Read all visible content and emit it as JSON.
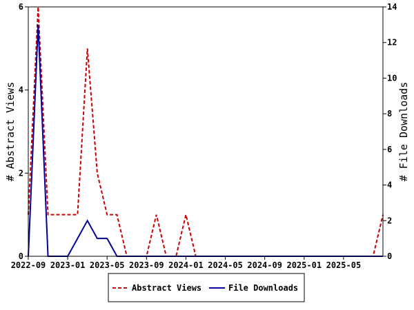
{
  "chart_data": {
    "type": "line",
    "ylabel_left": "# Abstract Views",
    "ylabel_right": "# File Downloads",
    "x_tick_labels": [
      "2022-09",
      "2023-01",
      "2023-05",
      "2023-09",
      "2024-01",
      "2024-05",
      "2024-09",
      "2025-01",
      "2025-05"
    ],
    "y_left_ticks": [
      "0",
      "2",
      "4",
      "6"
    ],
    "y_right_ticks": [
      "0",
      "2",
      "4",
      "6",
      "8",
      "10",
      "12",
      "14"
    ],
    "ylim_left": [
      0,
      6
    ],
    "ylim_right": [
      0,
      14
    ],
    "xlim_months": [
      "2022-09",
      "2025-09"
    ],
    "grid": false,
    "legend_position": "bottom",
    "series": [
      {
        "name": "Abstract Views",
        "axis": "left",
        "color": "#cc0000",
        "style": "dashed",
        "points": [
          [
            "2022-09",
            1
          ],
          [
            "2022-10",
            6
          ],
          [
            "2022-11",
            1
          ],
          [
            "2022-12",
            1
          ],
          [
            "2023-01",
            1
          ],
          [
            "2023-02",
            1
          ],
          [
            "2023-03",
            5
          ],
          [
            "2023-04",
            2
          ],
          [
            "2023-05",
            1
          ],
          [
            "2023-06",
            1
          ],
          [
            "2023-07",
            0
          ],
          [
            "2023-08",
            0
          ],
          [
            "2023-09",
            0
          ],
          [
            "2023-10",
            1
          ],
          [
            "2023-11",
            0
          ],
          [
            "2023-12",
            0
          ],
          [
            "2024-01",
            1
          ],
          [
            "2024-02",
            0
          ],
          [
            "2024-03",
            0
          ],
          [
            "2024-04",
            0
          ],
          [
            "2024-05",
            0
          ],
          [
            "2024-06",
            0
          ],
          [
            "2024-07",
            0
          ],
          [
            "2024-08",
            0
          ],
          [
            "2024-09",
            0
          ],
          [
            "2024-10",
            0
          ],
          [
            "2024-11",
            0
          ],
          [
            "2024-12",
            0
          ],
          [
            "2025-01",
            0
          ],
          [
            "2025-02",
            0
          ],
          [
            "2025-03",
            0
          ],
          [
            "2025-04",
            0
          ],
          [
            "2025-05",
            0
          ],
          [
            "2025-06",
            0
          ],
          [
            "2025-07",
            0
          ],
          [
            "2025-08",
            0
          ],
          [
            "2025-09",
            1
          ]
        ]
      },
      {
        "name": "File Downloads",
        "axis": "right",
        "color": "#000099",
        "style": "solid",
        "points": [
          [
            "2022-09",
            0
          ],
          [
            "2022-10",
            13
          ],
          [
            "2022-11",
            0
          ],
          [
            "2022-12",
            0
          ],
          [
            "2023-01",
            0
          ],
          [
            "2023-02",
            1
          ],
          [
            "2023-03",
            2
          ],
          [
            "2023-04",
            1
          ],
          [
            "2023-05",
            1
          ],
          [
            "2023-06",
            0
          ],
          [
            "2023-07",
            0
          ],
          [
            "2023-08",
            0
          ],
          [
            "2023-09",
            0
          ],
          [
            "2023-10",
            0
          ],
          [
            "2023-11",
            0
          ],
          [
            "2023-12",
            0
          ],
          [
            "2024-01",
            0
          ],
          [
            "2024-02",
            0
          ],
          [
            "2024-03",
            0
          ],
          [
            "2024-04",
            0
          ],
          [
            "2024-05",
            0
          ],
          [
            "2024-06",
            0
          ],
          [
            "2024-07",
            0
          ],
          [
            "2024-08",
            0
          ],
          [
            "2024-09",
            0
          ],
          [
            "2024-10",
            0
          ],
          [
            "2024-11",
            0
          ],
          [
            "2024-12",
            0
          ],
          [
            "2025-01",
            0
          ],
          [
            "2025-02",
            0
          ],
          [
            "2025-03",
            0
          ],
          [
            "2025-04",
            0
          ],
          [
            "2025-05",
            0
          ],
          [
            "2025-06",
            0
          ],
          [
            "2025-07",
            0
          ],
          [
            "2025-08",
            0
          ],
          [
            "2025-09",
            0
          ]
        ]
      }
    ]
  }
}
